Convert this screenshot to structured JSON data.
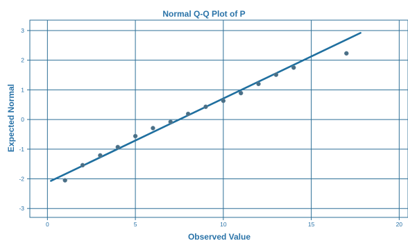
{
  "chart_data": {
    "type": "scatter",
    "title": "Normal Q-Q Plot of P",
    "xlabel": "Observed Value",
    "ylabel": "Expected Normal",
    "xlim": [
      -1,
      20.5
    ],
    "ylim": [
      -3.3,
      3.35
    ],
    "x_ticks": [
      0,
      5,
      10,
      15,
      20
    ],
    "y_ticks": [
      -3,
      -2,
      -1,
      0,
      1,
      2,
      3
    ],
    "grid": true,
    "points": [
      {
        "x": 1,
        "y": -2.05
      },
      {
        "x": 2,
        "y": -1.54
      },
      {
        "x": 3,
        "y": -1.21
      },
      {
        "x": 4,
        "y": -0.93
      },
      {
        "x": 5,
        "y": -0.56
      },
      {
        "x": 6,
        "y": -0.29
      },
      {
        "x": 7,
        "y": -0.08
      },
      {
        "x": 8,
        "y": 0.19
      },
      {
        "x": 9,
        "y": 0.43
      },
      {
        "x": 10,
        "y": 0.63
      },
      {
        "x": 11,
        "y": 0.89
      },
      {
        "x": 12,
        "y": 1.2
      },
      {
        "x": 13,
        "y": 1.51
      },
      {
        "x": 14,
        "y": 1.75
      },
      {
        "x": 17,
        "y": 2.23
      }
    ],
    "reference_line": {
      "x0": 0.2,
      "y0": -2.07,
      "x1": 17.8,
      "y1": 2.92
    },
    "colors": {
      "text": "#2a73a8",
      "grid": "#2d6f97",
      "line": "#1f6f9f",
      "points": "#4a6f86"
    }
  }
}
